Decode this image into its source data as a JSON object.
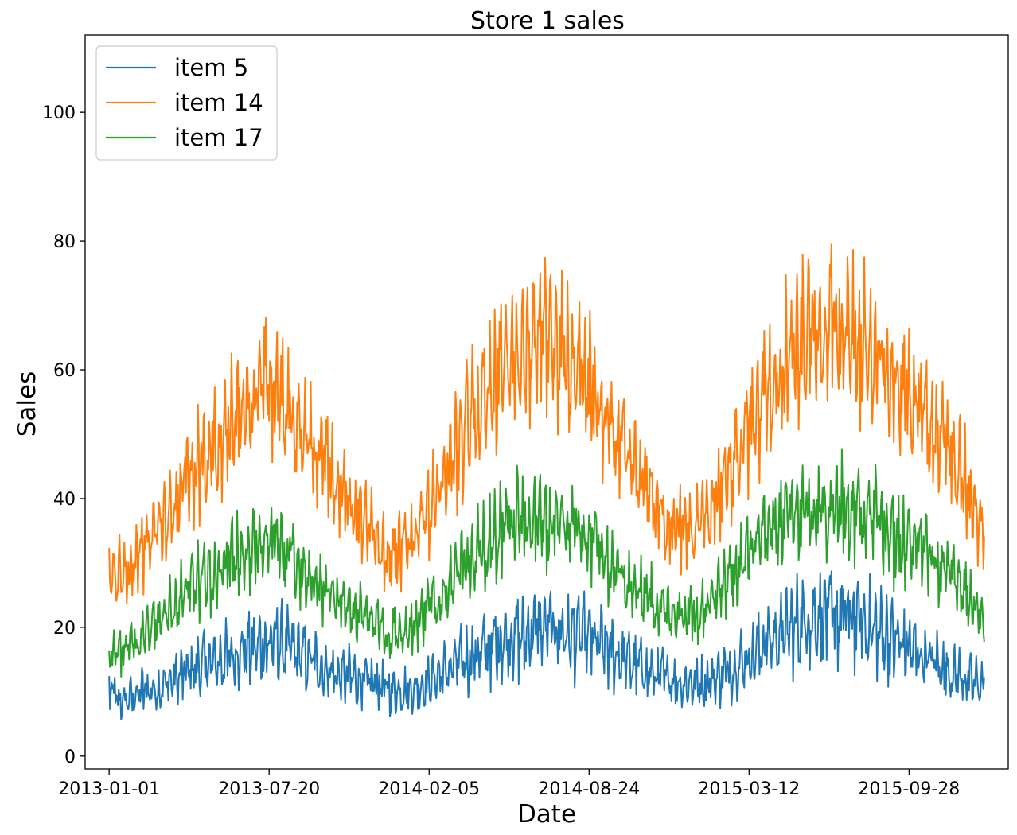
{
  "chart_data": {
    "type": "line",
    "title": "Store 1 sales",
    "xlabel": "Date",
    "ylabel": "Sales",
    "x_start": "2013-01-01",
    "x_end": "2015-12-31",
    "xlim": [
      "2012-12-02",
      "2016-01-30"
    ],
    "ylim": [
      -2,
      112
    ],
    "x_ticks": [
      "2013-01-01",
      "2013-07-20",
      "2014-02-05",
      "2014-08-24",
      "2015-03-12",
      "2015-09-28"
    ],
    "y_ticks": [
      0,
      20,
      40,
      60,
      80,
      100
    ],
    "grid": false,
    "legend_position": "top-left",
    "series": [
      {
        "name": "item 5",
        "color": "#1f77b4",
        "points": [
          [
            "2013-01-01",
            10
          ],
          [
            "2013-01-15",
            8
          ],
          [
            "2013-02-01",
            9
          ],
          [
            "2013-02-15",
            10
          ],
          [
            "2013-03-01",
            10
          ],
          [
            "2013-03-15",
            11
          ],
          [
            "2013-04-01",
            12
          ],
          [
            "2013-04-15",
            13
          ],
          [
            "2013-05-01",
            14
          ],
          [
            "2013-05-15",
            14
          ],
          [
            "2013-06-01",
            15
          ],
          [
            "2013-06-15",
            16
          ],
          [
            "2013-07-01",
            16
          ],
          [
            "2013-07-15",
            17
          ],
          [
            "2013-08-01",
            17
          ],
          [
            "2013-08-15",
            16
          ],
          [
            "2013-09-01",
            15
          ],
          [
            "2013-09-15",
            14
          ],
          [
            "2013-10-01",
            13
          ],
          [
            "2013-10-15",
            12
          ],
          [
            "2013-11-01",
            12
          ],
          [
            "2013-11-15",
            11
          ],
          [
            "2013-12-01",
            11
          ],
          [
            "2013-12-15",
            10
          ],
          [
            "2014-01-01",
            10
          ],
          [
            "2014-01-15",
            10
          ],
          [
            "2014-02-01",
            11
          ],
          [
            "2014-02-15",
            12
          ],
          [
            "2014-03-01",
            13
          ],
          [
            "2014-03-15",
            14
          ],
          [
            "2014-04-01",
            15
          ],
          [
            "2014-04-15",
            16
          ],
          [
            "2014-05-01",
            17
          ],
          [
            "2014-05-15",
            18
          ],
          [
            "2014-06-01",
            18
          ],
          [
            "2014-06-15",
            19
          ],
          [
            "2014-07-01",
            19
          ],
          [
            "2014-07-15",
            19
          ],
          [
            "2014-08-01",
            18
          ],
          [
            "2014-08-15",
            18
          ],
          [
            "2014-09-01",
            17
          ],
          [
            "2014-09-15",
            16
          ],
          [
            "2014-10-01",
            15
          ],
          [
            "2014-10-15",
            14
          ],
          [
            "2014-11-01",
            13
          ],
          [
            "2014-11-15",
            12
          ],
          [
            "2014-12-01",
            12
          ],
          [
            "2014-12-15",
            11
          ],
          [
            "2015-01-01",
            11
          ],
          [
            "2015-01-15",
            11
          ],
          [
            "2015-02-01",
            12
          ],
          [
            "2015-02-15",
            13
          ],
          [
            "2015-03-01",
            14
          ],
          [
            "2015-03-15",
            15
          ],
          [
            "2015-04-01",
            17
          ],
          [
            "2015-04-15",
            18
          ],
          [
            "2015-05-01",
            19
          ],
          [
            "2015-05-15",
            20
          ],
          [
            "2015-06-01",
            21
          ],
          [
            "2015-06-15",
            21
          ],
          [
            "2015-07-01",
            21
          ],
          [
            "2015-07-15",
            21
          ],
          [
            "2015-08-01",
            20
          ],
          [
            "2015-08-15",
            19
          ],
          [
            "2015-09-01",
            18
          ],
          [
            "2015-09-15",
            17
          ],
          [
            "2015-10-01",
            16
          ],
          [
            "2015-10-15",
            15
          ],
          [
            "2015-11-01",
            14
          ],
          [
            "2015-11-15",
            13
          ],
          [
            "2015-12-01",
            12
          ],
          [
            "2015-12-15",
            11
          ],
          [
            "2015-12-31",
            11
          ]
        ]
      },
      {
        "name": "item 14",
        "color": "#ff7f0e",
        "points": [
          [
            "2013-01-01",
            27
          ],
          [
            "2013-01-15",
            28
          ],
          [
            "2013-02-01",
            30
          ],
          [
            "2013-02-15",
            32
          ],
          [
            "2013-03-01",
            34
          ],
          [
            "2013-03-15",
            37
          ],
          [
            "2013-04-01",
            40
          ],
          [
            "2013-04-15",
            43
          ],
          [
            "2013-05-01",
            46
          ],
          [
            "2013-05-15",
            48
          ],
          [
            "2013-06-01",
            51
          ],
          [
            "2013-06-15",
            53
          ],
          [
            "2013-07-01",
            55
          ],
          [
            "2013-07-15",
            57
          ],
          [
            "2013-08-01",
            56
          ],
          [
            "2013-08-15",
            53
          ],
          [
            "2013-09-01",
            50
          ],
          [
            "2013-09-15",
            47
          ],
          [
            "2013-10-01",
            44
          ],
          [
            "2013-10-15",
            41
          ],
          [
            "2013-11-01",
            38
          ],
          [
            "2013-11-15",
            35
          ],
          [
            "2013-12-01",
            33
          ],
          [
            "2013-12-15",
            31
          ],
          [
            "2014-01-01",
            31
          ],
          [
            "2014-01-15",
            33
          ],
          [
            "2014-02-01",
            36
          ],
          [
            "2014-02-15",
            40
          ],
          [
            "2014-03-01",
            44
          ],
          [
            "2014-03-15",
            48
          ],
          [
            "2014-04-01",
            52
          ],
          [
            "2014-04-15",
            55
          ],
          [
            "2014-05-01",
            58
          ],
          [
            "2014-05-15",
            60
          ],
          [
            "2014-06-01",
            62
          ],
          [
            "2014-06-15",
            63
          ],
          [
            "2014-07-01",
            63
          ],
          [
            "2014-07-15",
            62
          ],
          [
            "2014-08-01",
            60
          ],
          [
            "2014-08-15",
            58
          ],
          [
            "2014-09-01",
            55
          ],
          [
            "2014-09-15",
            52
          ],
          [
            "2014-10-01",
            48
          ],
          [
            "2014-10-15",
            45
          ],
          [
            "2014-11-01",
            41
          ],
          [
            "2014-11-15",
            38
          ],
          [
            "2014-12-01",
            36
          ],
          [
            "2014-12-15",
            35
          ],
          [
            "2015-01-01",
            35
          ],
          [
            "2015-01-15",
            37
          ],
          [
            "2015-02-01",
            40
          ],
          [
            "2015-02-15",
            43
          ],
          [
            "2015-03-01",
            47
          ],
          [
            "2015-03-15",
            51
          ],
          [
            "2015-04-01",
            55
          ],
          [
            "2015-04-15",
            58
          ],
          [
            "2015-05-01",
            61
          ],
          [
            "2015-05-15",
            63
          ],
          [
            "2015-06-01",
            65
          ],
          [
            "2015-06-15",
            66
          ],
          [
            "2015-07-01",
            66
          ],
          [
            "2015-07-15",
            65
          ],
          [
            "2015-08-01",
            63
          ],
          [
            "2015-08-15",
            61
          ],
          [
            "2015-09-01",
            58
          ],
          [
            "2015-09-15",
            56
          ],
          [
            "2015-10-01",
            54
          ],
          [
            "2015-10-15",
            52
          ],
          [
            "2015-11-01",
            50
          ],
          [
            "2015-11-15",
            47
          ],
          [
            "2015-12-01",
            44
          ],
          [
            "2015-12-15",
            39
          ],
          [
            "2015-12-31",
            35
          ]
        ]
      },
      {
        "name": "item 17",
        "color": "#2ca02c",
        "points": [
          [
            "2013-01-01",
            16
          ],
          [
            "2013-01-15",
            16
          ],
          [
            "2013-02-01",
            17
          ],
          [
            "2013-02-15",
            19
          ],
          [
            "2013-03-01",
            20
          ],
          [
            "2013-03-15",
            22
          ],
          [
            "2013-04-01",
            24
          ],
          [
            "2013-04-15",
            26
          ],
          [
            "2013-05-01",
            27
          ],
          [
            "2013-05-15",
            28
          ],
          [
            "2013-06-01",
            30
          ],
          [
            "2013-06-15",
            31
          ],
          [
            "2013-07-01",
            32
          ],
          [
            "2013-07-15",
            33
          ],
          [
            "2013-08-01",
            32
          ],
          [
            "2013-08-15",
            31
          ],
          [
            "2013-09-01",
            29
          ],
          [
            "2013-09-15",
            27
          ],
          [
            "2013-10-01",
            25
          ],
          [
            "2013-10-15",
            24
          ],
          [
            "2013-11-01",
            22
          ],
          [
            "2013-11-15",
            21
          ],
          [
            "2013-12-01",
            20
          ],
          [
            "2013-12-15",
            19
          ],
          [
            "2014-01-01",
            19
          ],
          [
            "2014-01-15",
            20
          ],
          [
            "2014-02-01",
            22
          ],
          [
            "2014-02-15",
            24
          ],
          [
            "2014-03-01",
            26
          ],
          [
            "2014-03-15",
            28
          ],
          [
            "2014-04-01",
            30
          ],
          [
            "2014-04-15",
            32
          ],
          [
            "2014-05-01",
            34
          ],
          [
            "2014-05-15",
            35
          ],
          [
            "2014-06-01",
            36
          ],
          [
            "2014-06-15",
            36
          ],
          [
            "2014-07-01",
            36
          ],
          [
            "2014-07-15",
            36
          ],
          [
            "2014-08-01",
            35
          ],
          [
            "2014-08-15",
            34
          ],
          [
            "2014-09-01",
            32
          ],
          [
            "2014-09-15",
            30
          ],
          [
            "2014-10-01",
            28
          ],
          [
            "2014-10-15",
            26
          ],
          [
            "2014-11-01",
            25
          ],
          [
            "2014-11-15",
            23
          ],
          [
            "2014-12-01",
            22
          ],
          [
            "2014-12-15",
            22
          ],
          [
            "2015-01-01",
            22
          ],
          [
            "2015-01-15",
            23
          ],
          [
            "2015-02-01",
            25
          ],
          [
            "2015-02-15",
            27
          ],
          [
            "2015-03-01",
            29
          ],
          [
            "2015-03-15",
            31
          ],
          [
            "2015-04-01",
            33
          ],
          [
            "2015-04-15",
            35
          ],
          [
            "2015-05-01",
            36
          ],
          [
            "2015-05-15",
            37
          ],
          [
            "2015-06-01",
            38
          ],
          [
            "2015-06-15",
            38
          ],
          [
            "2015-07-01",
            38
          ],
          [
            "2015-07-15",
            38
          ],
          [
            "2015-08-01",
            37
          ],
          [
            "2015-08-15",
            36
          ],
          [
            "2015-09-01",
            34
          ],
          [
            "2015-09-15",
            33
          ],
          [
            "2015-10-01",
            32
          ],
          [
            "2015-10-15",
            31
          ],
          [
            "2015-11-01",
            29
          ],
          [
            "2015-11-15",
            28
          ],
          [
            "2015-12-01",
            26
          ],
          [
            "2015-12-15",
            23
          ],
          [
            "2015-12-31",
            21
          ]
        ]
      }
    ]
  }
}
